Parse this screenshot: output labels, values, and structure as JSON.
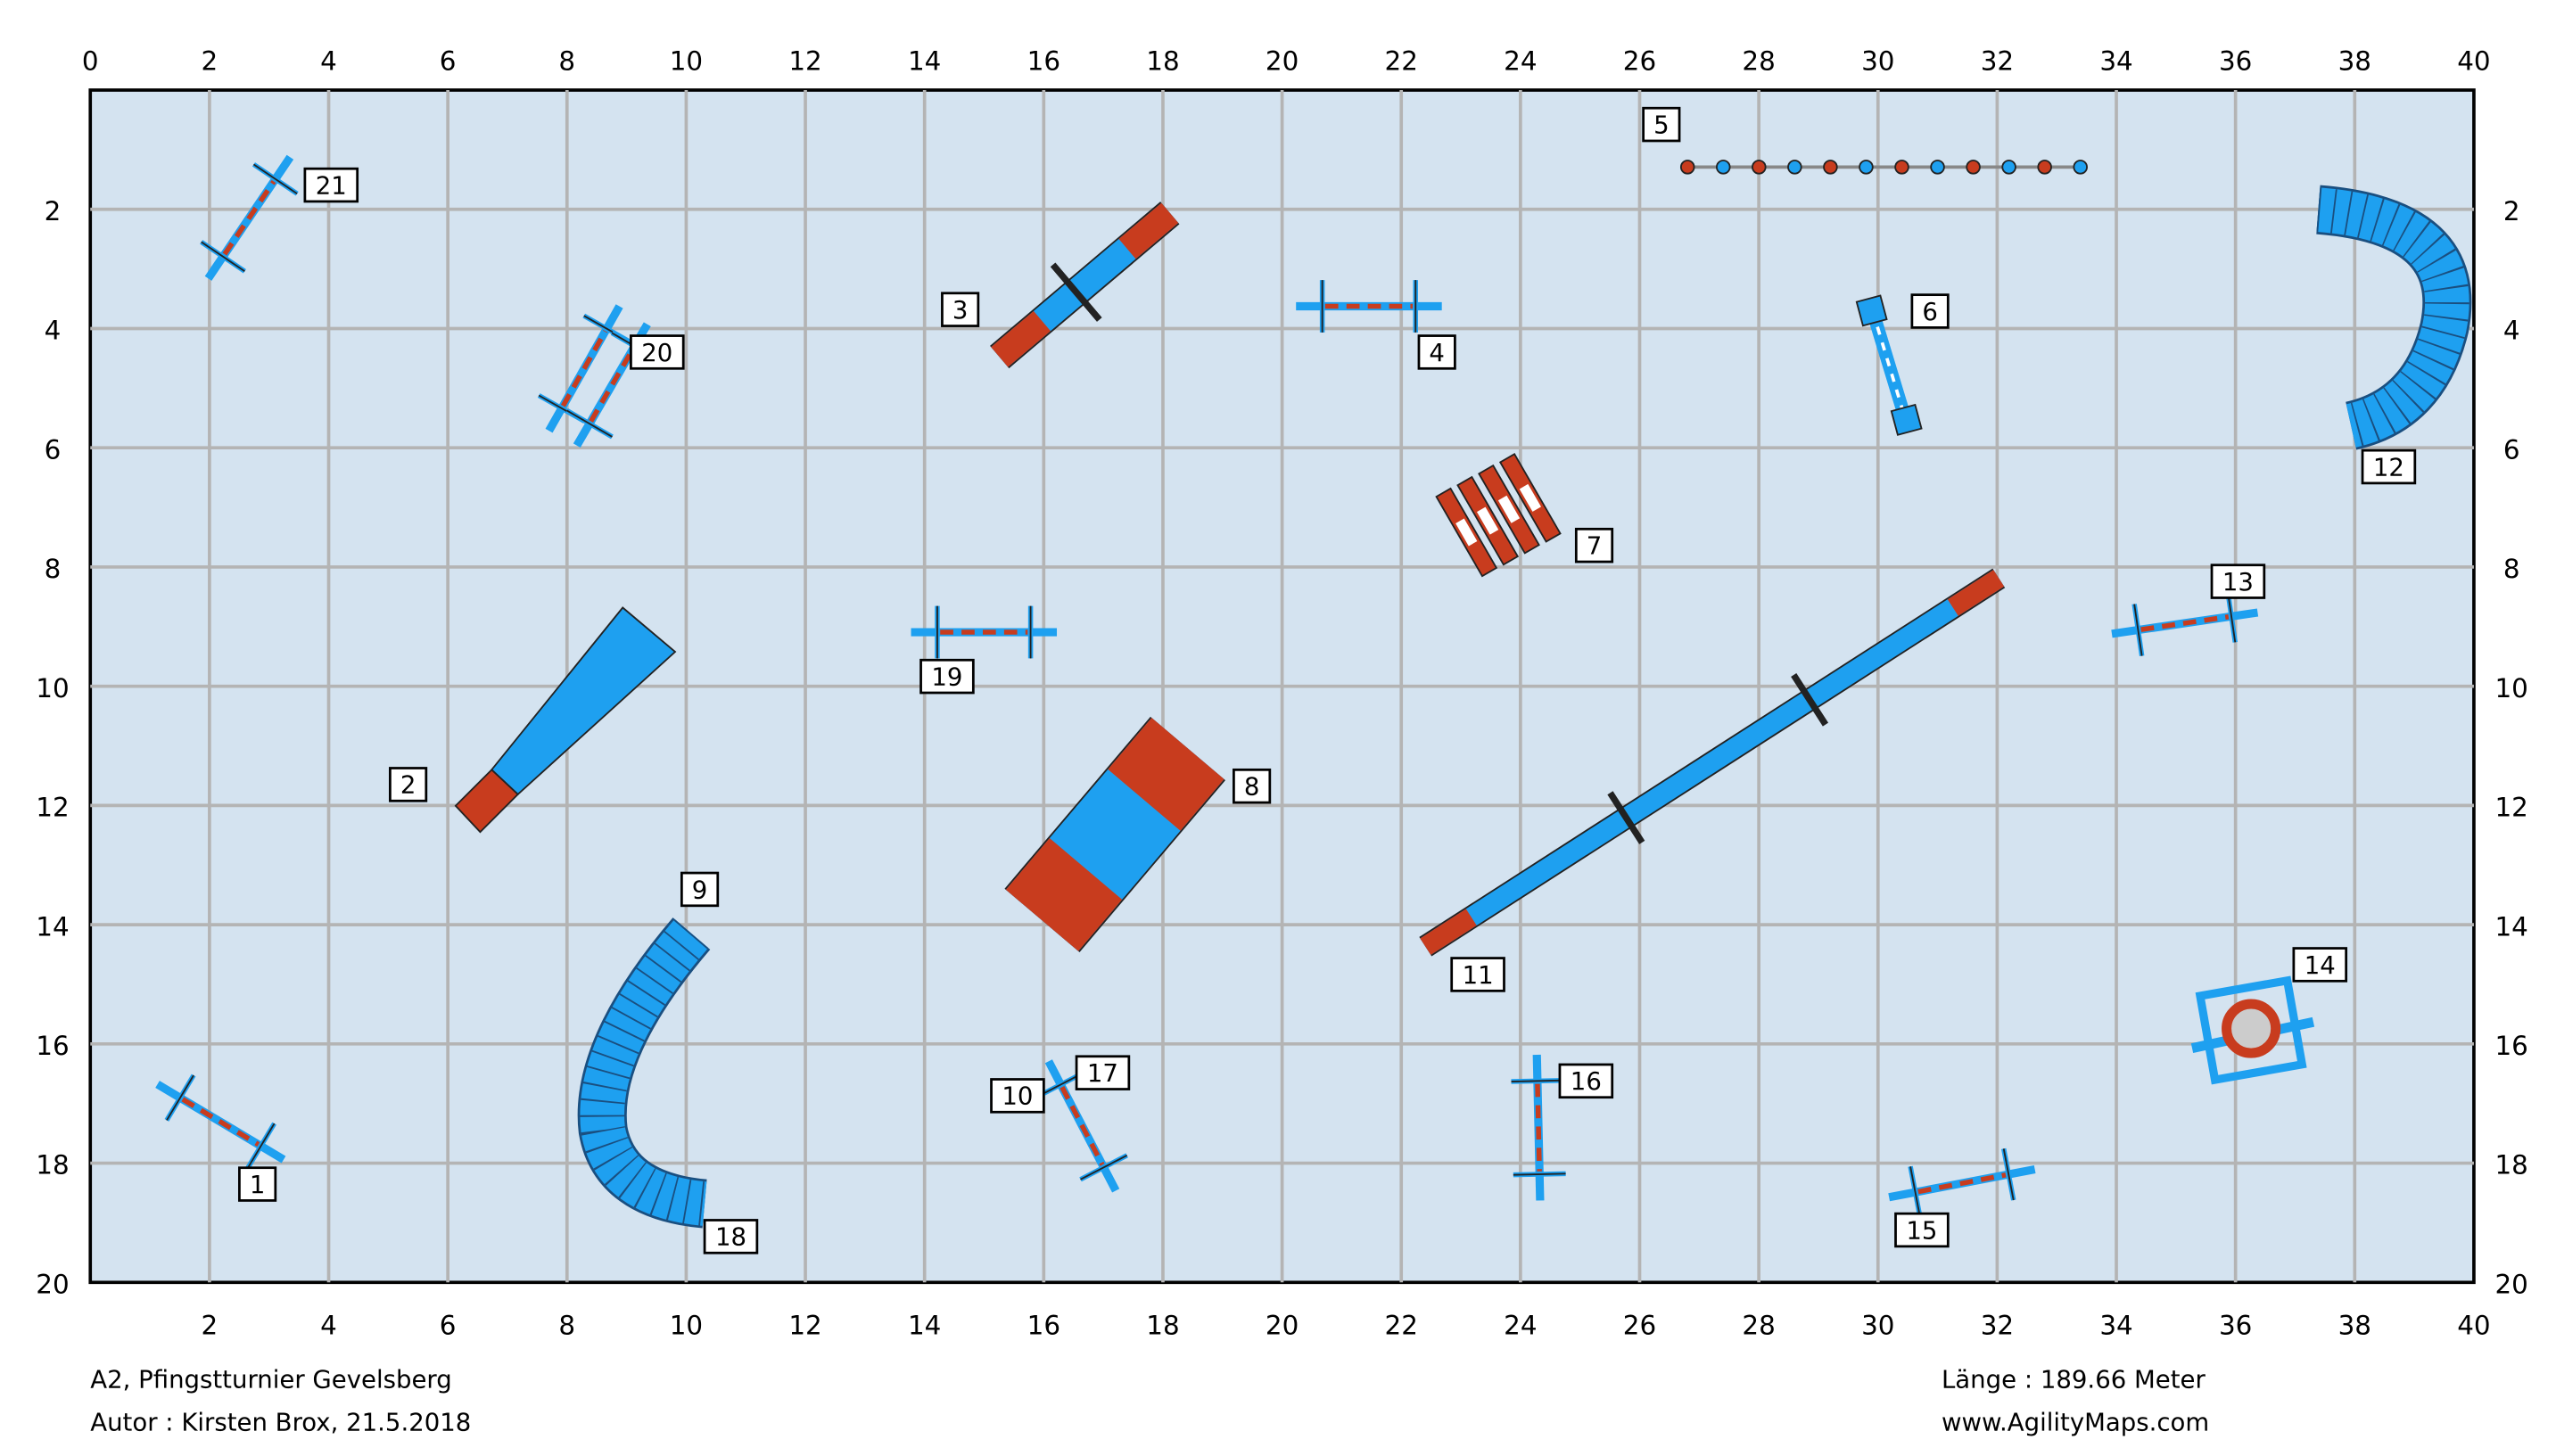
{
  "axes": {
    "top": [
      0,
      2,
      4,
      6,
      8,
      10,
      12,
      14,
      16,
      18,
      20,
      22,
      24,
      26,
      28,
      30,
      32,
      34,
      36,
      38,
      40
    ],
    "bottom": [
      2,
      4,
      6,
      8,
      10,
      12,
      14,
      16,
      18,
      20,
      22,
      24,
      26,
      28,
      30,
      32,
      34,
      36,
      38,
      40
    ],
    "left": [
      2,
      4,
      6,
      8,
      10,
      12,
      14,
      16,
      18,
      20
    ],
    "right": [
      2,
      4,
      6,
      8,
      10,
      12,
      14,
      16,
      18,
      20
    ]
  },
  "obstacles": [
    "21",
    "20",
    "3",
    "4",
    "5",
    "6",
    "12",
    "7",
    "13",
    "19",
    "2",
    "8",
    "11",
    "9",
    "14",
    "10",
    "17",
    "16",
    "1",
    "18",
    "15"
  ],
  "footer": {
    "event": "A2, Pfingstturnier Gevelsberg",
    "author": "Autor : Kirsten Brox, 21.5.2018",
    "length": "Länge : 189.66 Meter",
    "website": "www.AgilityMaps.com"
  }
}
